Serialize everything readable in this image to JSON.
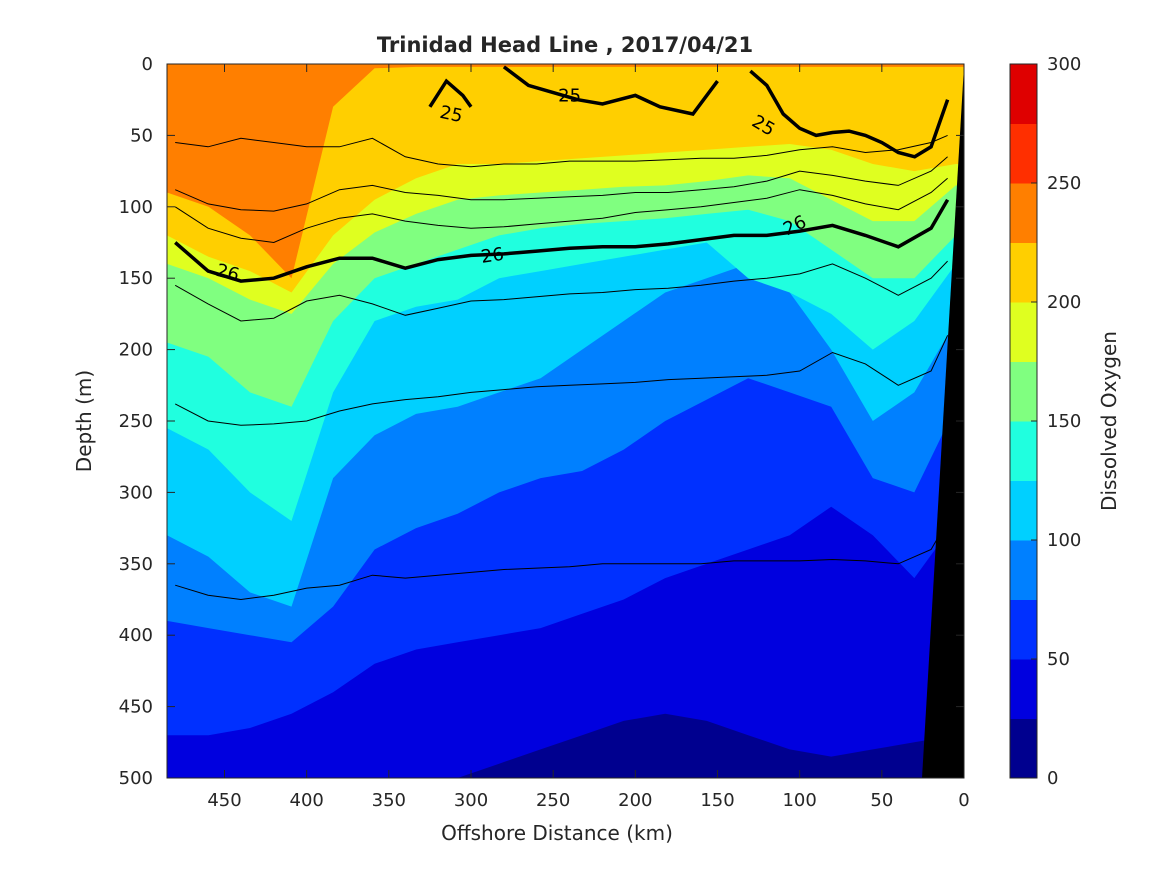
{
  "chart_data": {
    "type": "contour",
    "title": "Trinidad Head Line , 2017/04/21",
    "xlabel": "Offshore Distance (km)",
    "ylabel": "Depth (m)",
    "colorbar_label": "Dissolved Oxygen",
    "xlim": [
      485,
      0
    ],
    "ylim": [
      0,
      500
    ],
    "x_reversed": true,
    "y_reversed": true,
    "x_ticks": [
      450,
      400,
      350,
      300,
      250,
      200,
      150,
      100,
      50,
      0
    ],
    "y_ticks": [
      0,
      50,
      100,
      150,
      200,
      250,
      300,
      350,
      400,
      450,
      500
    ],
    "colorbar_ticks": [
      0,
      50,
      100,
      150,
      200,
      250,
      300
    ],
    "levels": [
      0,
      25,
      50,
      75,
      100,
      125,
      150,
      175,
      200,
      225,
      250,
      275,
      300
    ],
    "colors": [
      "#00008f",
      "#0000df",
      "#0030ff",
      "#0080ff",
      "#00d0ff",
      "#20ffdf",
      "#80ff80",
      "#dfff20",
      "#ffcf00",
      "#ff7f00",
      "#ff2f00",
      "#df0000"
    ],
    "oxygen_boundaries": [
      {
        "level": 225,
        "depth": [
          90,
          100,
          120,
          150,
          30,
          3,
          2,
          2,
          2,
          2,
          2,
          2,
          2,
          2,
          2,
          2,
          2,
          2,
          2,
          2
        ]
      },
      {
        "level": 200,
        "depth": [
          120,
          135,
          145,
          160,
          120,
          95,
          80,
          70,
          70,
          68,
          66,
          64,
          62,
          60,
          58,
          56,
          60,
          70,
          75,
          70
        ]
      },
      {
        "level": 175,
        "depth": [
          140,
          150,
          165,
          175,
          140,
          118,
          105,
          95,
          92,
          90,
          88,
          86,
          85,
          82,
          78,
          80,
          95,
          110,
          110,
          85
        ]
      },
      {
        "level": 150,
        "depth": [
          195,
          205,
          230,
          240,
          180,
          150,
          140,
          130,
          120,
          115,
          112,
          110,
          108,
          105,
          102,
          110,
          130,
          150,
          150,
          120
        ]
      },
      {
        "level": 125,
        "depth": [
          255,
          270,
          300,
          320,
          230,
          180,
          170,
          165,
          150,
          145,
          140,
          135,
          130,
          125,
          150,
          160,
          175,
          200,
          180,
          140
        ]
      },
      {
        "level": 100,
        "depth": [
          330,
          345,
          370,
          380,
          290,
          260,
          245,
          240,
          230,
          220,
          200,
          180,
          160,
          150,
          140,
          160,
          200,
          250,
          230,
          180
        ]
      },
      {
        "level": 75,
        "depth": [
          390,
          395,
          400,
          405,
          380,
          340,
          325,
          315,
          300,
          290,
          285,
          270,
          250,
          235,
          220,
          230,
          240,
          290,
          300,
          240
        ]
      },
      {
        "level": 50,
        "depth": [
          470,
          470,
          465,
          455,
          440,
          420,
          410,
          405,
          400,
          395,
          385,
          375,
          360,
          350,
          340,
          330,
          310,
          330,
          360,
          320
        ]
      },
      {
        "level": 25,
        "depth": [
          500,
          500,
          500,
          500,
          500,
          500,
          500,
          500,
          490,
          480,
          470,
          460,
          455,
          460,
          470,
          480,
          485,
          480,
          475,
          470
        ]
      }
    ],
    "contour_distance": [
      480,
      460,
      440,
      420,
      400,
      380,
      360,
      340,
      320,
      300,
      280,
      260,
      240,
      220,
      200,
      180,
      160,
      140,
      120,
      100,
      80,
      60,
      40,
      20,
      10
    ],
    "density_contours": [
      {
        "label": "",
        "depth": [
          55,
          58,
          52,
          55,
          58,
          58,
          52,
          65,
          70,
          72,
          70,
          70,
          68,
          68,
          68,
          67,
          66,
          66,
          64,
          60,
          58,
          62,
          60,
          55,
          50
        ]
      },
      {
        "label": "",
        "depth": [
          88,
          98,
          102,
          103,
          98,
          88,
          85,
          90,
          92,
          95,
          95,
          94,
          93,
          92,
          90,
          90,
          88,
          86,
          82,
          75,
          78,
          82,
          85,
          75,
          65
        ]
      },
      {
        "label": "",
        "depth": [
          100,
          115,
          122,
          125,
          115,
          108,
          105,
          110,
          113,
          115,
          114,
          112,
          110,
          108,
          104,
          102,
          100,
          97,
          94,
          88,
          92,
          98,
          102,
          90,
          80
        ]
      },
      {
        "label": "26",
        "depth": [
          125,
          145,
          152,
          150,
          142,
          136,
          136,
          143,
          137,
          134,
          133,
          131,
          129,
          128,
          128,
          126,
          123,
          120,
          120,
          117,
          113,
          120,
          128,
          115,
          95
        ]
      },
      {
        "label": "",
        "depth": [
          155,
          168,
          180,
          178,
          166,
          162,
          168,
          176,
          171,
          166,
          165,
          163,
          161,
          160,
          158,
          157,
          155,
          152,
          150,
          147,
          140,
          150,
          162,
          150,
          138
        ]
      },
      {
        "label": "",
        "depth": [
          238,
          250,
          253,
          252,
          250,
          243,
          238,
          235,
          233,
          230,
          228,
          226,
          225,
          224,
          223,
          221,
          220,
          219,
          218,
          215,
          202,
          210,
          225,
          215,
          190
        ]
      },
      {
        "label": "",
        "depth": [
          365,
          372,
          375,
          372,
          367,
          365,
          358,
          360,
          358,
          356,
          354,
          353,
          352,
          350,
          350,
          350,
          350,
          348,
          348,
          348,
          347,
          348,
          350,
          340,
          320
        ]
      }
    ],
    "contour_25": {
      "label": "25",
      "distance": [
        130,
        120,
        110,
        100,
        90,
        80,
        70,
        60,
        50,
        40,
        30,
        20,
        10
      ],
      "depth": [
        5,
        15,
        35,
        45,
        50,
        48,
        47,
        50,
        55,
        62,
        65,
        58,
        25
      ]
    },
    "contour_25_b": {
      "label": "25",
      "distance": [
        280,
        265,
        250,
        235,
        220,
        200,
        185,
        165,
        150
      ],
      "depth": [
        2,
        15,
        20,
        25,
        28,
        22,
        30,
        35,
        12
      ]
    },
    "contour_25_c": {
      "label": "25",
      "distance": [
        325,
        315,
        305,
        300
      ],
      "depth": [
        30,
        12,
        22,
        30
      ]
    }
  }
}
